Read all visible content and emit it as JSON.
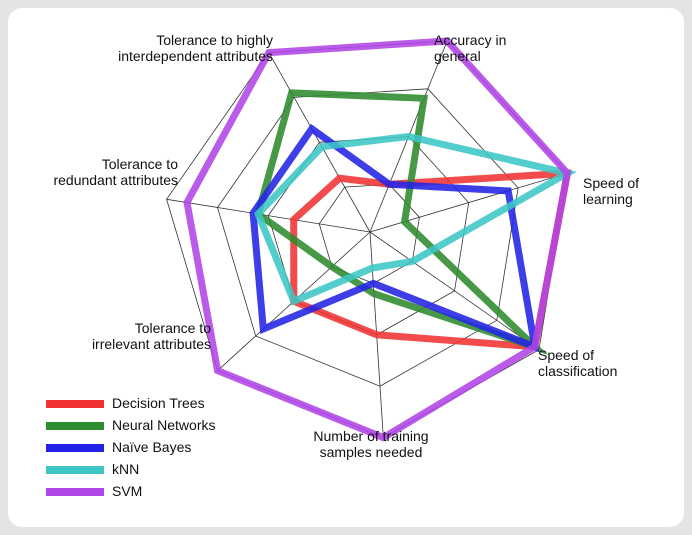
{
  "chart_data": {
    "type": "radar",
    "title": "",
    "axes": [
      {
        "lines": [
          "Accuracy in",
          "general"
        ]
      },
      {
        "lines": [
          "Speed of",
          "learning"
        ]
      },
      {
        "lines": [
          "Speed of",
          "classification"
        ]
      },
      {
        "lines": [
          "Number of training",
          "samples needed"
        ]
      },
      {
        "lines": [
          "Tolerance to",
          "irrelevant attributes"
        ]
      },
      {
        "lines": [
          "Tolerance to",
          "redundant attributes"
        ]
      },
      {
        "lines": [
          "Tolerance to highly",
          "interdependent attributes"
        ]
      }
    ],
    "range": [
      0,
      4
    ],
    "rings": 4,
    "grid": true,
    "legend_position": "bottom-left",
    "series": [
      {
        "name": "Decision Trees",
        "color": "#f03232",
        "values": [
          1.0,
          4.0,
          3.9,
          2.0,
          2.0,
          1.5,
          1.2
        ]
      },
      {
        "name": "Neural Networks",
        "color": "#2e8b2e",
        "values": [
          2.8,
          0.7,
          3.9,
          1.2,
          1.0,
          2.2,
          3.1
        ]
      },
      {
        "name": "Naïve Bayes",
        "color": "#2323e6",
        "values": [
          1.0,
          2.8,
          3.9,
          1.0,
          2.8,
          2.3,
          2.3
        ]
      },
      {
        "name": "kNN",
        "color": "#3cc6c6",
        "values": [
          2.0,
          4.0,
          1.0,
          0.7,
          2.0,
          2.2,
          1.9
        ]
      },
      {
        "name": "SVM",
        "color": "#b146e6",
        "values": [
          4.0,
          4.0,
          3.9,
          4.0,
          4.0,
          3.6,
          4.0
        ]
      }
    ]
  }
}
